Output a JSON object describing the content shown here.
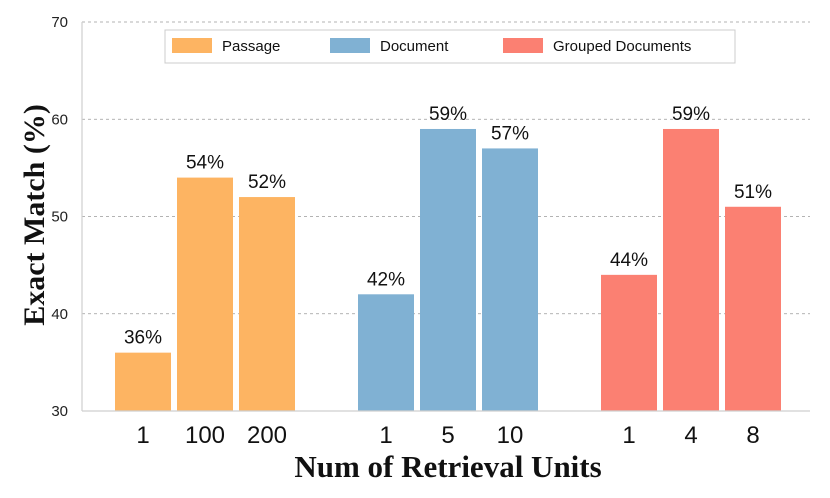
{
  "chart_data": {
    "type": "bar",
    "title": "",
    "xlabel": "Num of Retrieval Units",
    "ylabel": "Exact Match (%)",
    "ylim": [
      30,
      70
    ],
    "yticks": [
      30,
      40,
      50,
      60,
      70
    ],
    "grid": "horizontal dashed",
    "legend_position": "top",
    "series": [
      {
        "name": "Passage",
        "color": "#FDB462",
        "categories": [
          "1",
          "100",
          "200"
        ],
        "values": [
          36,
          54,
          52
        ],
        "labels": [
          "36%",
          "54%",
          "52%"
        ]
      },
      {
        "name": "Document",
        "color": "#80B1D3",
        "categories": [
          "1",
          "5",
          "10"
        ],
        "values": [
          42,
          59,
          57
        ],
        "labels": [
          "42%",
          "59%",
          "57%"
        ]
      },
      {
        "name": "Grouped Documents",
        "color": "#FB8072",
        "categories": [
          "1",
          "4",
          "8"
        ],
        "values": [
          44,
          59,
          51
        ],
        "labels": [
          "44%",
          "59%",
          "51%"
        ]
      }
    ]
  }
}
